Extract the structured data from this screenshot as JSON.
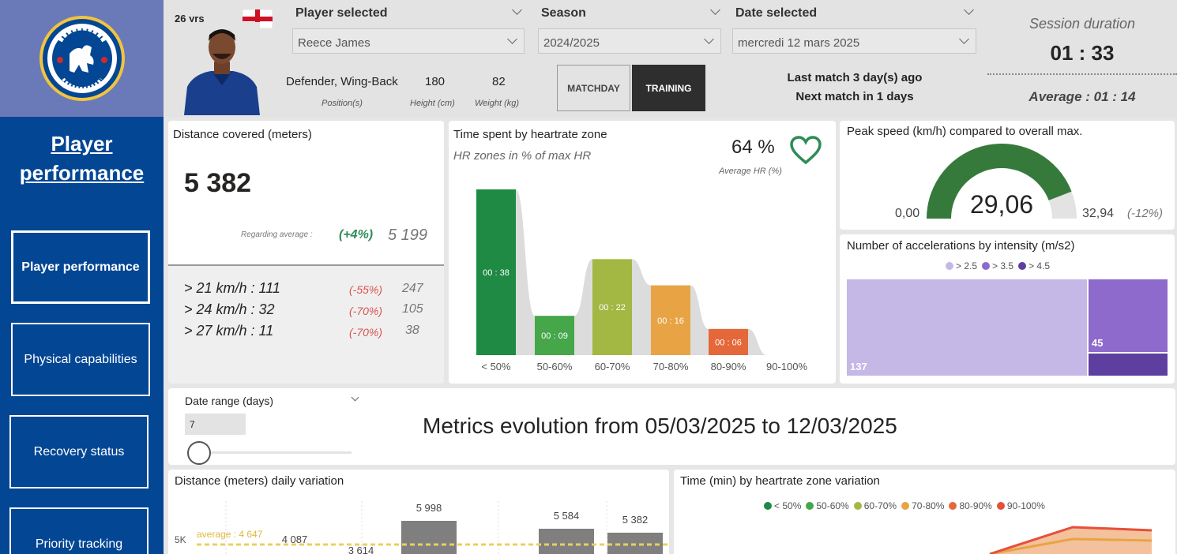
{
  "header": {
    "age": "26 yrs",
    "player_selected_label": "Player selected",
    "player_selected_value": "Reece James",
    "season_label": "Season",
    "season_value": "2024/2025",
    "date_label": "Date selected",
    "date_value": "mercredi 12 mars 2025",
    "position": "Defender, Wing-Back",
    "position_caption": "Position(s)",
    "height": "180",
    "height_caption": "Height (cm)",
    "weight": "82",
    "weight_caption": "Weight (kg)",
    "matchday_label": "MATCHDAY",
    "training_label": "TRAINING",
    "last_match": "Last match 3 day(s) ago",
    "next_match": "Next match in 1 days",
    "session_label": "Session duration",
    "session_value": "01 : 33",
    "average_label": "Average : 01 : 14"
  },
  "sidebar": {
    "title_line1": "Player",
    "title_line2": "performance",
    "items": [
      {
        "label": "Player performance"
      },
      {
        "label": "Physical capabilities"
      },
      {
        "label": "Recovery status"
      },
      {
        "label": "Priority tracking"
      }
    ]
  },
  "distance": {
    "title": "Distance covered (meters)",
    "value": "5 382",
    "regarding_label": "Regarding average :",
    "regarding_pct": "(+4%)",
    "regarding_avg": "5 199",
    "rows": [
      {
        "label": "> 21 km/h : 111",
        "pct": "(-55%)",
        "avg": "247"
      },
      {
        "label": "> 24 km/h : 32",
        "pct": "(-70%)",
        "avg": "105"
      },
      {
        "label": "> 27 km/h : 11",
        "pct": "(-70%)",
        "avg": "38"
      }
    ]
  },
  "heartrate": {
    "title": "Time spent by heartrate zone",
    "subtitle": "HR zones in % of max HR",
    "avg_value": "64 %",
    "avg_label": "Average HR (%)",
    "colors": [
      "#1e8a44",
      "#45a64a",
      "#a2b843",
      "#e8a444",
      "#e5683a",
      "#e5503a"
    ]
  },
  "chart_data": [
    {
      "type": "bar",
      "categories": [
        "< 50%",
        "50-60%",
        "60-70%",
        "70-80%",
        "80-90%",
        "90-100%"
      ],
      "values": [
        38,
        9,
        22,
        16,
        6,
        0
      ],
      "labels": [
        "00 : 38",
        "00 : 09",
        "00 : 22",
        "00 : 16",
        "00 : 06",
        ""
      ]
    },
    {
      "type": "bar",
      "title": "Number of accelerations by intensity (m/s2)",
      "categories": [
        "> 2.5",
        "> 3.5",
        "> 4.5"
      ],
      "values": [
        137,
        45,
        0
      ],
      "labels": [
        "137",
        "45",
        ""
      ],
      "colors": [
        "#c5b7e6",
        "#8d6acb",
        "#5e3fa0"
      ]
    },
    {
      "type": "bar",
      "title": "Distance (meters) daily variation",
      "values": [
        4087,
        3614,
        5998,
        5584,
        5382
      ],
      "labels": [
        "4 087",
        "3 614",
        "5 998",
        "5 584",
        "5 382"
      ],
      "ytick": "5K",
      "average_label": "average : 4 647"
    }
  ],
  "peak": {
    "title": "Peak speed (km/h) compared to overall max.",
    "min": "0,00",
    "value": "29,06",
    "max": "32,94",
    "pct": "(-12%)",
    "fraction": 0.8822
  },
  "metrics": {
    "date_range_label": "Date range (days)",
    "date_range_value": "7",
    "title": "Metrics evolution from 05/03/2025 to 12/03/2025"
  },
  "hr_variation": {
    "title": "Time (min) by heartrate zone variation",
    "legend": [
      "< 50%",
      "50-60%",
      "60-70%",
      "70-80%",
      "80-90%",
      "90-100%"
    ]
  }
}
